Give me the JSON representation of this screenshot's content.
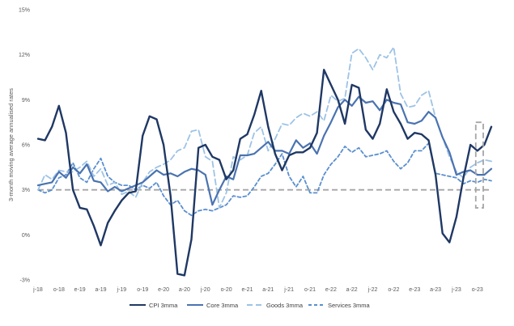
{
  "chart_data": {
    "type": "line",
    "title": "",
    "xlabel": "",
    "ylabel": "3-month moving average annualised rates",
    "ylim": [
      -3,
      15
    ],
    "yticks": [
      -3,
      0,
      3,
      6,
      9,
      12,
      15
    ],
    "ytick_labels": [
      "-3%",
      "0%",
      "3%",
      "6%",
      "9%",
      "12%",
      "15%"
    ],
    "x_start": "2018-07",
    "x_end": "2023-11",
    "xtick_labels": [
      "j-18",
      "o-18",
      "e-19",
      "a-19",
      "j-19",
      "o-19",
      "e-20",
      "a-20",
      "j-20",
      "o-20",
      "e-21",
      "a-21",
      "j-21",
      "o-21",
      "e-22",
      "a-22",
      "j-22",
      "o-22",
      "e-23",
      "a-23",
      "j-23",
      "o-23"
    ],
    "grid": false,
    "legend_position": "bottom",
    "reference_line": {
      "y": 3,
      "style": "dashed",
      "color": "#a6a6a6"
    },
    "highlight_box": {
      "x_from": 63,
      "x_to": 67,
      "y_from": 1.8,
      "y_to": 7.5,
      "style": "dashed",
      "color": "#a6a6a6"
    },
    "series": [
      {
        "name": "CPI 3mma",
        "color": "#1f3864",
        "dash": "solid",
        "values": [
          6.4,
          6.3,
          7.2,
          8.6,
          6.8,
          3.0,
          1.8,
          1.7,
          0.6,
          -0.7,
          0.8,
          1.6,
          2.3,
          2.8,
          2.9,
          6.6,
          7.9,
          7.7,
          6.0,
          2.6,
          -2.6,
          -2.7,
          -0.3,
          5.8,
          6.0,
          5.2,
          5.0,
          3.7,
          4.3,
          6.4,
          6.7,
          8.0,
          9.6,
          7.2,
          5.4,
          4.3,
          5.3,
          5.5,
          5.5,
          5.8,
          6.8,
          11.0,
          10.0,
          9.0,
          7.4,
          10.0,
          9.8,
          7.0,
          6.4,
          7.4,
          9.7,
          8.2,
          7.4,
          6.4,
          6.8,
          6.7,
          6.3,
          4.0,
          0.1,
          -0.5,
          1.2,
          3.8,
          6.0,
          5.6,
          6.0,
          7.2
        ]
      },
      {
        "name": "Core 3mma",
        "color": "#4a73b0",
        "dash": "solid",
        "values": [
          3.3,
          3.4,
          3.5,
          4.2,
          3.8,
          4.5,
          4.1,
          4.7,
          3.6,
          3.5,
          2.9,
          3.2,
          2.9,
          3.1,
          3.3,
          3.5,
          3.9,
          4.3,
          4.0,
          4.1,
          3.9,
          4.2,
          4.4,
          4.3,
          4.0,
          2.0,
          3.0,
          3.9,
          3.7,
          5.3,
          5.3,
          5.4,
          5.8,
          6.2,
          5.6,
          5.6,
          5.4,
          6.3,
          5.8,
          6.1,
          5.4,
          6.6,
          7.5,
          8.5,
          9.0,
          8.6,
          9.2,
          8.8,
          8.9,
          8.3,
          9.0,
          8.8,
          8.7,
          7.5,
          7.4,
          7.6,
          8.2,
          7.8,
          6.5,
          5.5,
          4.0,
          4.2,
          4.3,
          4.0,
          4.0,
          4.4
        ]
      },
      {
        "name": "Goods 3mma",
        "color": "#9dc3e6",
        "dash": "long",
        "values": [
          3.0,
          4.0,
          3.7,
          4.3,
          4.2,
          4.2,
          4.5,
          4.9,
          3.9,
          4.4,
          3.3,
          3.5,
          2.7,
          2.9,
          2.5,
          3.5,
          4.2,
          4.5,
          4.7,
          5.0,
          5.6,
          5.8,
          6.9,
          7.0,
          5.2,
          4.9,
          1.8,
          2.8,
          5.2,
          5.0,
          5.3,
          6.8,
          7.2,
          5.6,
          6.4,
          7.4,
          7.3,
          7.8,
          8.1,
          7.9,
          8.2,
          7.6,
          9.3,
          8.9,
          9.1,
          12.1,
          12.4,
          11.8,
          11.0,
          12.0,
          11.8,
          12.5,
          9.4,
          8.5,
          8.6,
          9.3,
          9.6,
          7.8,
          6.5,
          5.2,
          4.2,
          3.8,
          4.5,
          4.8,
          5.0,
          4.9
        ]
      },
      {
        "name": "Services 3mma",
        "color": "#5b8fcf",
        "dash": "short",
        "values": [
          3.0,
          2.8,
          3.0,
          3.8,
          4.0,
          4.8,
          3.8,
          3.5,
          4.4,
          5.1,
          3.9,
          3.5,
          3.3,
          3.3,
          3.0,
          3.3,
          3.1,
          3.5,
          2.6,
          2.0,
          2.3,
          1.6,
          1.3,
          1.6,
          1.7,
          1.6,
          1.8,
          2.0,
          2.6,
          2.5,
          2.6,
          3.2,
          3.9,
          4.1,
          4.7,
          5.4,
          3.9,
          3.2,
          3.9,
          2.8,
          2.8,
          4.0,
          4.7,
          5.2,
          5.9,
          5.5,
          5.8,
          5.2,
          5.3,
          5.4,
          5.6,
          4.9,
          4.4,
          4.8,
          5.6,
          5.6,
          6.1,
          4.1,
          4.0,
          3.9,
          3.8,
          3.4,
          3.6,
          3.5,
          3.7,
          3.6
        ]
      }
    ]
  }
}
